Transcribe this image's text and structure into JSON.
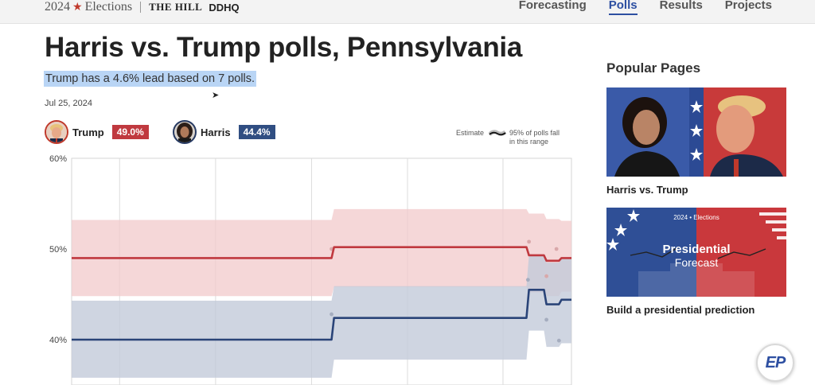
{
  "header": {
    "brand_year": "2024",
    "brand_name": "Elections",
    "partner1": "THE HILL",
    "partner2": "DDHQ",
    "nav": [
      {
        "label": "Forecasting",
        "active": false
      },
      {
        "label": "Polls",
        "active": true
      },
      {
        "label": "Results",
        "active": false
      },
      {
        "label": "Projects",
        "active": false
      }
    ]
  },
  "main": {
    "title": "Harris vs. Trump polls, Pennsylvania",
    "summary": "Trump has a 4.6% lead based on 7 polls.",
    "date": "Jul 25, 2024",
    "candidates": [
      {
        "name": "Trump",
        "pct": "49.0%",
        "color": "#c0393f"
      },
      {
        "name": "Harris",
        "pct": "44.4%",
        "color": "#304e82"
      }
    ],
    "legend": {
      "estimate": "Estimate",
      "band_line1": "95% of polls fall",
      "band_line2": "in this range"
    }
  },
  "chart_data": {
    "type": "line",
    "title": "Harris vs. Trump polls, Pennsylvania",
    "ylabel": "",
    "xlabel": "",
    "ylim": [
      35,
      60
    ],
    "yticks": [
      "60%",
      "50%",
      "40%"
    ],
    "ytick_values": [
      60,
      50,
      40
    ],
    "xlim": [
      0,
      100
    ],
    "grid": true,
    "series": [
      {
        "name": "Trump",
        "color": "#c0393f",
        "band_color": "#f2c9cb",
        "x": [
          0,
          52,
          52.5,
          91,
          91.5,
          94.5,
          95,
          97.5,
          98,
          100
        ],
        "values": [
          49.0,
          49.0,
          50.2,
          50.2,
          49.3,
          49.3,
          48.7,
          48.7,
          49.0,
          49.0
        ],
        "band_x": [
          0,
          52,
          52.5,
          91,
          91.5,
          94.5,
          95,
          97.5,
          98,
          100
        ],
        "band_low": [
          44.8,
          44.8,
          45.8,
          45.8,
          45.2,
          45.2,
          44.8,
          44.8,
          45.3,
          45.3
        ],
        "band_high": [
          53.2,
          53.2,
          54.4,
          54.4,
          53.9,
          53.9,
          53.3,
          53.3,
          53.1,
          53.1
        ]
      },
      {
        "name": "Harris",
        "color": "#2a4478",
        "band_color": "#c3cbd9",
        "x": [
          0,
          52,
          52.5,
          91,
          91.5,
          94.5,
          95,
          97.5,
          98,
          100
        ],
        "values": [
          40.0,
          40.0,
          42.4,
          42.4,
          45.5,
          45.5,
          43.9,
          43.9,
          44.4,
          44.4
        ],
        "band_x": [
          0,
          52,
          52.5,
          91,
          91.5,
          94.5,
          95,
          97.5,
          98,
          100
        ],
        "band_low": [
          35.8,
          35.8,
          37.8,
          37.8,
          41.0,
          41.0,
          39.2,
          39.2,
          39.6,
          39.6
        ],
        "band_high": [
          44.3,
          44.3,
          45.9,
          45.9,
          49.3,
          49.3,
          48.5,
          48.5,
          48.9,
          48.9
        ]
      }
    ],
    "poll_points": [
      {
        "candidate": "Trump",
        "x": 52,
        "y": 50.0
      },
      {
        "candidate": "Trump",
        "x": 91.5,
        "y": 50.8
      },
      {
        "candidate": "Trump",
        "x": 97,
        "y": 50.0
      },
      {
        "candidate": "Trump",
        "x": 95,
        "y": 47.0
      },
      {
        "candidate": "Harris",
        "x": 52,
        "y": 42.8
      },
      {
        "candidate": "Harris",
        "x": 91.3,
        "y": 46.6
      },
      {
        "candidate": "Harris",
        "x": 95,
        "y": 42.2
      },
      {
        "candidate": "Harris",
        "x": 97.5,
        "y": 39.9
      }
    ]
  },
  "sidebar": {
    "title": "Popular Pages",
    "cards": [
      {
        "label": "Harris vs. Trump"
      },
      {
        "label": "Build a presidential prediction",
        "kicker": "2024 • Elections",
        "title": "Presidential",
        "subtitle": "Forecast"
      }
    ]
  },
  "watermark": {
    "text": "EP"
  }
}
